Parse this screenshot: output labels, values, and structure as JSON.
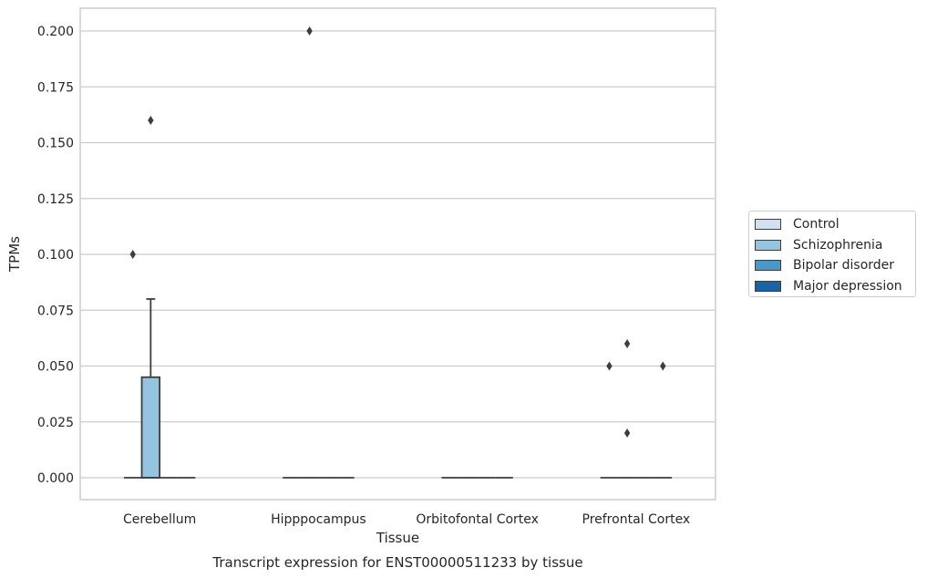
{
  "chart_data": {
    "type": "box",
    "title": "Transcript expression for ENST00000511233 by tissue",
    "xlabel": "Tissue",
    "ylabel": "TPMs",
    "ylim": [
      -0.01,
      0.21
    ],
    "yticks": [
      "0.000",
      "0.025",
      "0.050",
      "0.075",
      "0.100",
      "0.125",
      "0.150",
      "0.175",
      "0.200"
    ],
    "categories": [
      "Cerebellum",
      "Hipppocampus",
      "Orbitofontal Cortex",
      "Prefrontal Cortex"
    ],
    "grid": true,
    "legend_position": "right",
    "series": [
      {
        "name": "Control",
        "color": "#d0e1f2",
        "boxes": [
          {
            "category": "Cerebellum",
            "q1": 0,
            "median": 0,
            "q3": 0,
            "whisker_low": 0,
            "whisker_high": 0,
            "outliers": [
              0.1
            ]
          },
          {
            "category": "Hipppocampus",
            "q1": 0,
            "median": 0,
            "q3": 0,
            "whisker_low": 0,
            "whisker_high": 0,
            "outliers": []
          },
          {
            "category": "Orbitofontal Cortex",
            "q1": 0,
            "median": 0,
            "q3": 0,
            "whisker_low": 0,
            "whisker_high": 0,
            "outliers": []
          },
          {
            "category": "Prefrontal Cortex",
            "q1": 0,
            "median": 0,
            "q3": 0,
            "whisker_low": 0,
            "whisker_high": 0,
            "outliers": [
              0.05
            ]
          }
        ]
      },
      {
        "name": "Schizophrenia",
        "color": "#94c4df",
        "boxes": [
          {
            "category": "Cerebellum",
            "q1": 0,
            "median": 0,
            "q3": 0.045,
            "whisker_low": 0,
            "whisker_high": 0.08,
            "outliers": [
              0.16
            ]
          },
          {
            "category": "Hipppocampus",
            "q1": 0,
            "median": 0,
            "q3": 0,
            "whisker_low": 0,
            "whisker_high": 0,
            "outliers": [
              0.2
            ]
          },
          {
            "category": "Orbitofontal Cortex",
            "q1": 0,
            "median": 0,
            "q3": 0,
            "whisker_low": 0,
            "whisker_high": 0,
            "outliers": []
          },
          {
            "category": "Prefrontal Cortex",
            "q1": 0,
            "median": 0,
            "q3": 0,
            "whisker_low": 0,
            "whisker_high": 0,
            "outliers": [
              0.06,
              0.02
            ]
          }
        ]
      },
      {
        "name": "Bipolar disorder",
        "color": "#4a98c9",
        "boxes": [
          {
            "category": "Cerebellum",
            "q1": 0,
            "median": 0,
            "q3": 0,
            "whisker_low": 0,
            "whisker_high": 0,
            "outliers": []
          },
          {
            "category": "Hipppocampus",
            "q1": 0,
            "median": 0,
            "q3": 0,
            "whisker_low": 0,
            "whisker_high": 0,
            "outliers": []
          },
          {
            "category": "Orbitofontal Cortex",
            "q1": 0,
            "median": 0,
            "q3": 0,
            "whisker_low": 0,
            "whisker_high": 0,
            "outliers": []
          },
          {
            "category": "Prefrontal Cortex",
            "q1": 0,
            "median": 0,
            "q3": 0,
            "whisker_low": 0,
            "whisker_high": 0,
            "outliers": []
          }
        ]
      },
      {
        "name": "Major depression",
        "color": "#1764ab",
        "boxes": [
          {
            "category": "Cerebellum",
            "q1": 0,
            "median": 0,
            "q3": 0,
            "whisker_low": 0,
            "whisker_high": 0,
            "outliers": []
          },
          {
            "category": "Hipppocampus",
            "q1": 0,
            "median": 0,
            "q3": 0,
            "whisker_low": 0,
            "whisker_high": 0,
            "outliers": []
          },
          {
            "category": "Orbitofontal Cortex",
            "q1": 0,
            "median": 0,
            "q3": 0,
            "whisker_low": 0,
            "whisker_high": 0,
            "outliers": []
          },
          {
            "category": "Prefrontal Cortex",
            "q1": 0,
            "median": 0,
            "q3": 0,
            "whisker_low": 0,
            "whisker_high": 0,
            "outliers": [
              0.05
            ]
          }
        ]
      }
    ]
  }
}
